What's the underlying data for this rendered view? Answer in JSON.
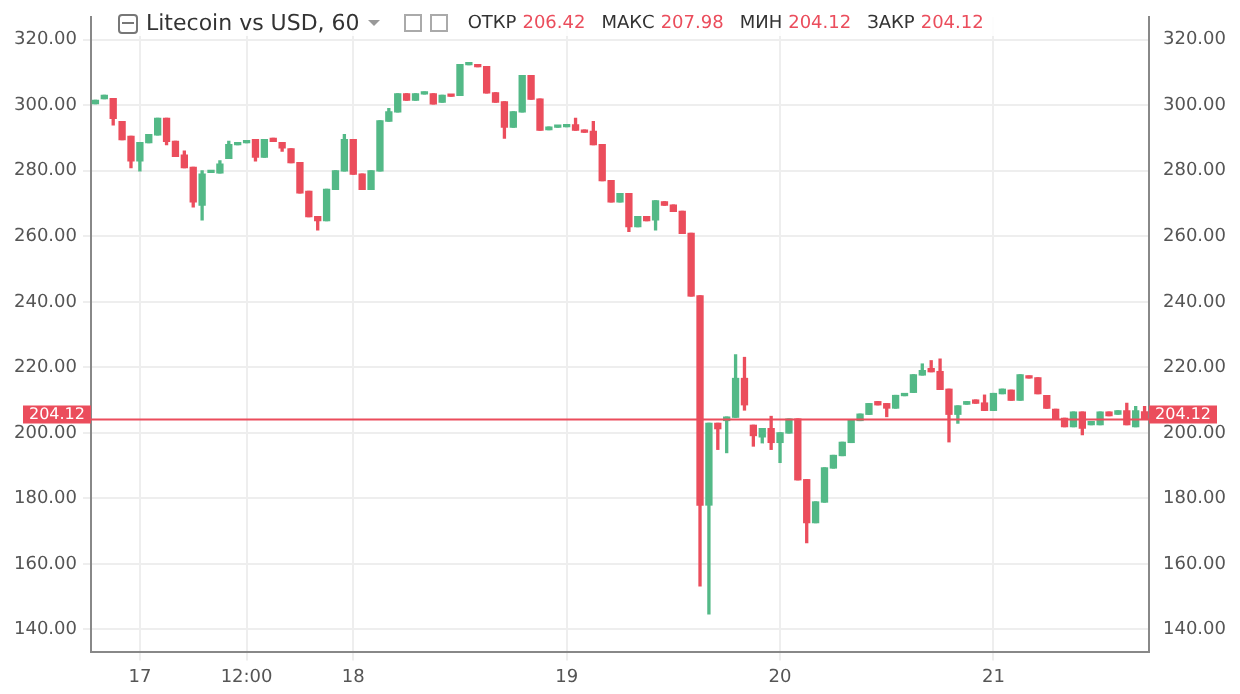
{
  "chart_data": {
    "type": "candlestick",
    "title": "Litecoin vs USD, 60",
    "annotations": [
      "ОТКР",
      "206.42",
      "МАКС",
      "207.98",
      "МИН",
      "204.12",
      "ЗАКР",
      "204.12"
    ],
    "categories": [
      null,
      null,
      null,
      null,
      null,
      "17",
      null,
      null,
      null,
      null,
      null,
      null,
      null,
      null,
      null,
      null,
      null,
      "12:00",
      null,
      null,
      null,
      null,
      null,
      null,
      null,
      null,
      null,
      null,
      null,
      "18",
      null,
      null,
      null,
      null,
      null,
      null,
      null,
      null,
      null,
      null,
      null,
      null,
      null,
      null,
      null,
      null,
      null,
      null,
      null,
      null,
      null,
      null,
      null,
      "19",
      null,
      null,
      null,
      null,
      null,
      null,
      null,
      null,
      null,
      null,
      null,
      null,
      null,
      null,
      null,
      null,
      null,
      null,
      null,
      null,
      null,
      null,
      null,
      "20",
      null,
      null,
      null,
      null,
      null,
      null,
      null,
      null,
      null,
      null,
      null,
      null,
      null,
      null,
      null,
      null,
      null,
      null,
      null,
      null,
      null,
      null,
      null,
      "21",
      null,
      null,
      null,
      null,
      null,
      null,
      null,
      null,
      null,
      null,
      null,
      null,
      null,
      null,
      null,
      null,
      null
    ],
    "ohlc": [
      [
        300.5,
        301.5,
        300.5,
        301.5
      ],
      [
        302,
        303,
        302,
        303
      ],
      [
        302,
        302,
        294,
        296
      ],
      [
        295,
        295,
        289.5,
        289.5
      ],
      [
        290.5,
        290.5,
        281,
        283
      ],
      [
        283,
        288.6,
        280,
        288.6
      ],
      [
        288.6,
        291,
        288.6,
        291
      ],
      [
        291,
        296,
        291,
        296
      ],
      [
        296,
        296,
        288,
        289
      ],
      [
        289,
        289,
        284.4,
        284.4
      ],
      [
        284.8,
        286,
        281,
        281
      ],
      [
        281,
        281,
        269,
        270.5
      ],
      [
        269.5,
        280,
        265,
        279
      ],
      [
        279.5,
        280,
        279.5,
        280
      ],
      [
        279.4,
        283,
        279.4,
        282
      ],
      [
        283.8,
        289,
        283.8,
        288
      ],
      [
        288,
        288.6,
        288,
        288.6
      ],
      [
        288.6,
        289,
        288.6,
        289
      ],
      [
        289.5,
        289.5,
        283,
        284.2
      ],
      [
        284.2,
        289.5,
        284.2,
        289.5
      ],
      [
        289.9,
        289.9,
        289,
        289
      ],
      [
        288.6,
        288.6,
        286,
        287
      ],
      [
        286.7,
        286.7,
        282.5,
        282.5
      ],
      [
        282.5,
        282.5,
        273.3,
        273.3
      ],
      [
        273.7,
        273.7,
        266,
        266
      ],
      [
        266,
        266,
        262,
        264.8
      ],
      [
        264.8,
        274.3,
        264.8,
        274.3
      ],
      [
        274.3,
        280,
        274.3,
        280
      ],
      [
        280,
        291,
        280,
        289.5
      ],
      [
        289.5,
        289.5,
        279,
        279
      ],
      [
        279,
        279,
        274.3,
        274.3
      ],
      [
        274.3,
        280,
        274.3,
        280
      ],
      [
        280,
        295.2,
        280,
        295.2
      ],
      [
        295.2,
        299,
        295.2,
        298
      ],
      [
        298,
        303.5,
        298,
        303.5
      ],
      [
        303.5,
        303.5,
        301.6,
        301.6
      ],
      [
        301.6,
        303.5,
        301.6,
        303.5
      ],
      [
        303.5,
        304,
        303.5,
        304
      ],
      [
        303.5,
        303.5,
        300.4,
        300.4
      ],
      [
        301,
        303,
        301,
        303
      ],
      [
        303,
        303,
        302.8,
        302.8
      ],
      [
        303,
        312.4,
        303,
        312.4
      ],
      [
        312.4,
        312.8,
        312.4,
        312.8
      ],
      [
        312.4,
        312.4,
        311.8,
        311.8
      ],
      [
        311.8,
        311.8,
        303.8,
        303.8
      ],
      [
        303.8,
        303.8,
        301,
        301
      ],
      [
        301,
        301,
        290,
        293.3
      ],
      [
        293.3,
        298,
        293.3,
        298
      ],
      [
        298,
        309,
        298,
        309
      ],
      [
        309,
        309,
        301.9,
        301.9
      ],
      [
        301.9,
        301.9,
        292.4,
        292.4
      ],
      [
        292.6,
        293.3,
        292.6,
        293.3
      ],
      [
        293.3,
        293.5,
        293.3,
        293.5
      ],
      [
        293.5,
        294,
        293.5,
        294
      ],
      [
        294,
        296,
        292.4,
        292.4
      ],
      [
        292.4,
        292.4,
        291.8,
        291.8
      ],
      [
        292,
        295,
        288,
        288
      ],
      [
        288,
        288,
        277,
        277
      ],
      [
        277,
        277,
        270.5,
        270.5
      ],
      [
        270.5,
        273,
        270.5,
        273
      ],
      [
        273,
        273,
        261.5,
        263
      ],
      [
        263,
        266,
        263,
        266
      ],
      [
        266,
        266,
        264.8,
        264.8
      ],
      [
        265,
        270.8,
        262,
        270.8
      ],
      [
        270.5,
        270.5,
        269.5,
        269.5
      ],
      [
        269.5,
        269.5,
        267.6,
        267.6
      ],
      [
        267.6,
        267.6,
        260.9,
        260.9
      ],
      [
        260.9,
        260.9,
        241.8,
        241.8
      ],
      [
        241.8,
        241.8,
        153.3,
        178
      ],
      [
        178,
        202.9,
        144.8,
        202.9
      ],
      [
        202.9,
        202.9,
        195,
        201.3
      ],
      [
        203.8,
        204.8,
        194,
        204.8
      ],
      [
        204.8,
        223.8,
        204.8,
        216.6
      ],
      [
        216.6,
        223,
        207,
        208.6
      ],
      [
        202.3,
        202.3,
        196,
        199.2
      ],
      [
        198.8,
        201.3,
        197,
        201.3
      ],
      [
        201.3,
        205,
        195,
        197.1
      ],
      [
        197.1,
        200,
        191,
        200
      ],
      [
        200,
        204.2,
        200,
        204.2
      ],
      [
        204.2,
        204.2,
        185.7,
        185.7
      ],
      [
        185.7,
        185.7,
        166.5,
        172.6
      ],
      [
        172.6,
        178.9,
        172.6,
        178.9
      ],
      [
        178.9,
        189.3,
        178.9,
        189.3
      ],
      [
        189.3,
        193.1,
        189.3,
        193.1
      ],
      [
        193.1,
        197.1,
        193.1,
        197.1
      ],
      [
        197.1,
        203.8,
        197.1,
        203.8
      ],
      [
        203.8,
        205.7,
        203.8,
        205.7
      ],
      [
        205.7,
        208.9,
        205.7,
        208.9
      ],
      [
        209.5,
        209.5,
        208.6,
        208.6
      ],
      [
        208.9,
        208.9,
        205,
        207.6
      ],
      [
        207.6,
        211.4,
        207.6,
        211.4
      ],
      [
        211.4,
        211.8,
        211.4,
        211.8
      ],
      [
        212.4,
        217.7,
        212.4,
        217.7
      ],
      [
        217.7,
        221,
        217.7,
        219
      ],
      [
        219.6,
        222,
        218.7,
        218.7
      ],
      [
        218.7,
        222.5,
        213.3,
        213.3
      ],
      [
        213.3,
        213.3,
        197.3,
        205.7
      ],
      [
        205.7,
        208.2,
        203,
        208.2
      ],
      [
        208.8,
        209.5,
        208.8,
        209.5
      ],
      [
        210,
        210,
        209.1,
        209.1
      ],
      [
        209.1,
        211.5,
        206.9,
        206.9
      ],
      [
        206.9,
        212,
        206.9,
        212
      ],
      [
        212,
        213.3,
        212,
        213.3
      ],
      [
        213,
        213,
        210,
        210
      ],
      [
        210,
        217.7,
        210,
        217.7
      ],
      [
        217.3,
        217.3,
        216.8,
        216.8
      ],
      [
        216.8,
        216.8,
        212,
        212
      ],
      [
        211.4,
        211.4,
        207.6,
        207.6
      ],
      [
        207.2,
        207.2,
        204.4,
        204.4
      ],
      [
        204.4,
        204.4,
        201.9,
        201.9
      ],
      [
        201.9,
        206.3,
        201.9,
        206.3
      ],
      [
        206.3,
        206.3,
        199.5,
        201.5
      ],
      [
        202.5,
        203.4,
        202.5,
        203.4
      ],
      [
        202.5,
        206.3,
        202.5,
        206.3
      ],
      [
        206.3,
        206.3,
        205.3,
        205.3
      ],
      [
        205.7,
        206.7,
        205.7,
        206.7
      ],
      [
        206.7,
        209,
        202.5,
        202.5
      ],
      [
        201.9,
        208,
        201.9,
        206.7
      ],
      [
        206.42,
        207.98,
        204.12,
        204.12
      ]
    ],
    "colors": [
      "#53b987",
      "#53b987",
      "#eb4d5c",
      "#eb4d5c",
      "#eb4d5c",
      "#53b987",
      "#53b987",
      "#53b987",
      "#eb4d5c",
      "#eb4d5c",
      "#eb4d5c",
      "#eb4d5c",
      "#53b987",
      "#53b987",
      "#53b987",
      "#53b987",
      "#53b987",
      "#53b987",
      "#eb4d5c",
      "#53b987",
      "#eb4d5c",
      "#eb4d5c",
      "#eb4d5c",
      "#eb4d5c",
      "#eb4d5c",
      "#eb4d5c",
      "#53b987",
      "#53b987",
      "#53b987",
      "#eb4d5c",
      "#eb4d5c",
      "#53b987",
      "#53b987",
      "#53b987",
      "#53b987",
      "#eb4d5c",
      "#53b987",
      "#53b987",
      "#eb4d5c",
      "#53b987",
      "#eb4d5c",
      "#53b987",
      "#53b987",
      "#eb4d5c",
      "#eb4d5c",
      "#eb4d5c",
      "#eb4d5c",
      "#53b987",
      "#53b987",
      "#eb4d5c",
      "#eb4d5c",
      "#53b987",
      "#53b987",
      "#53b987",
      "#eb4d5c",
      "#eb4d5c",
      "#eb4d5c",
      "#eb4d5c",
      "#eb4d5c",
      "#53b987",
      "#eb4d5c",
      "#53b987",
      "#eb4d5c",
      "#53b987",
      "#eb4d5c",
      "#eb4d5c",
      "#eb4d5c",
      "#eb4d5c",
      "#eb4d5c",
      "#53b987",
      "#eb4d5c",
      "#53b987",
      "#53b987",
      "#eb4d5c",
      "#eb4d5c",
      "#53b987",
      "#eb4d5c",
      "#53b987",
      "#53b987",
      "#eb4d5c",
      "#eb4d5c",
      "#53b987",
      "#53b987",
      "#53b987",
      "#53b987",
      "#53b987",
      "#53b987",
      "#53b987",
      "#eb4d5c",
      "#eb4d5c",
      "#53b987",
      "#53b987",
      "#53b987",
      "#53b987",
      "#eb4d5c",
      "#eb4d5c",
      "#eb4d5c",
      "#53b987",
      "#53b987",
      "#eb4d5c",
      "#eb4d5c",
      "#53b987",
      "#53b987",
      "#eb4d5c",
      "#53b987",
      "#eb4d5c",
      "#eb4d5c",
      "#eb4d5c",
      "#eb4d5c",
      "#eb4d5c",
      "#53b987",
      "#eb4d5c",
      "#53b987",
      "#53b987",
      "#eb4d5c",
      "#53b987",
      "#eb4d5c",
      "#53b987",
      "#eb4d5c"
    ],
    "ylim": [
      133,
      327
    ],
    "yticks": [
      {
        "value": 140,
        "label": "140.00"
      },
      {
        "value": 160,
        "label": "160.00"
      },
      {
        "value": 180,
        "label": "180.00"
      },
      {
        "value": 200,
        "label": "200.00"
      },
      {
        "value": 220,
        "label": "220.00"
      },
      {
        "value": 240,
        "label": "240.00"
      },
      {
        "value": 260,
        "label": "260.00"
      },
      {
        "value": 280,
        "label": "280.00"
      },
      {
        "value": 300,
        "label": "300.00"
      },
      {
        "value": 320,
        "label": "320.00"
      }
    ],
    "y2lim": [
      133,
      327
    ],
    "y2ticks": [
      {
        "value": 140,
        "label": "140.00"
      },
      {
        "value": 160,
        "label": "160.00"
      },
      {
        "value": 180,
        "label": "180.00"
      },
      {
        "value": 200,
        "label": "200.00"
      },
      {
        "value": 220,
        "label": "220.00"
      },
      {
        "value": 240,
        "label": "240.00"
      },
      {
        "value": 260,
        "label": "260.00"
      },
      {
        "value": 280,
        "label": "280.00"
      },
      {
        "value": 300,
        "label": "300.00"
      },
      {
        "value": 320,
        "label": "320.00"
      }
    ],
    "ref_lines": [
      {
        "axis": "y",
        "value": 204.12,
        "label": "204.12",
        "color": "#eb4d5c"
      }
    ],
    "grid": true,
    "legend": false
  }
}
